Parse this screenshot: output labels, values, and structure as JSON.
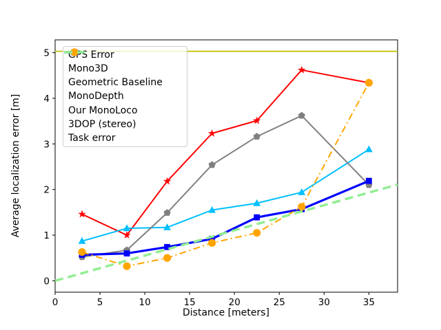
{
  "figure": {
    "background": "#ffffff",
    "border_color": "#000000"
  },
  "legend": {
    "position": "upper-left",
    "border_color": "#cccccc",
    "background": "rgba(255,255,255,0.8)"
  },
  "chart_data": {
    "type": "line",
    "title": "",
    "xlabel": "Distance [meters]",
    "ylabel": "Average localization error [m]",
    "xlim": [
      0,
      38.2
    ],
    "ylim": [
      -0.25,
      5.28
    ],
    "x_ticks": [
      0,
      5,
      10,
      15,
      20,
      25,
      30,
      35
    ],
    "y_ticks": [
      0,
      1,
      2,
      3,
      4,
      5
    ],
    "grid": false,
    "legend_position": "upper-left",
    "series": [
      {
        "name": "GPS Error",
        "slug": "gps-error",
        "color": "#bfbf00",
        "style": "solid",
        "marker": "none",
        "linewidth": 1.8,
        "x": [
          0,
          38.2
        ],
        "y": [
          5.03,
          5.03
        ]
      },
      {
        "name": "Mono3D",
        "slug": "mono3d",
        "color": "#ff0000",
        "style": "solid",
        "marker": "star",
        "linewidth": 2,
        "x": [
          3,
          8,
          12.5,
          17.5,
          22.5,
          27.5,
          35
        ],
        "y": [
          1.46,
          1.0,
          2.18,
          3.23,
          3.51,
          4.62,
          4.34
        ]
      },
      {
        "name": "Geometric Baseline",
        "slug": "geometric-baseline",
        "color": "#00bfff",
        "style": "solid",
        "marker": "triangle",
        "linewidth": 2,
        "x": [
          3,
          8,
          12.5,
          17.5,
          22.5,
          27.5,
          35
        ],
        "y": [
          0.87,
          1.15,
          1.17,
          1.55,
          1.7,
          1.94,
          2.88
        ]
      },
      {
        "name": "MonoDepth",
        "slug": "monodepth",
        "color": "#808080",
        "style": "solid",
        "marker": "pentagon",
        "linewidth": 2,
        "x": [
          3,
          8,
          12.5,
          17.5,
          22.5,
          27.5,
          35
        ],
        "y": [
          0.52,
          0.67,
          1.49,
          2.54,
          3.16,
          3.62,
          2.1
        ]
      },
      {
        "name": "Our MonoLoco",
        "slug": "our-monoloco",
        "color": "#0000ff",
        "style": "solid",
        "marker": "square",
        "linewidth": 3.2,
        "x": [
          3,
          8,
          12.5,
          17.5,
          22.5,
          27.5,
          35
        ],
        "y": [
          0.57,
          0.6,
          0.74,
          0.92,
          1.39,
          1.57,
          2.19
        ]
      },
      {
        "name": "3DOP (stereo)",
        "slug": "3dop-stereo",
        "color": "#ffa500",
        "style": "dashdot",
        "marker": "circle",
        "linewidth": 2,
        "x": [
          3,
          8,
          12.5,
          17.5,
          22.5,
          27.5,
          35
        ],
        "y": [
          0.63,
          0.32,
          0.5,
          0.83,
          1.05,
          1.62,
          4.34
        ]
      },
      {
        "name": "Task error",
        "slug": "task-error",
        "color": "#90ee90",
        "style": "dashed",
        "marker": "none",
        "linewidth": 3.4,
        "x": [
          0,
          38.2
        ],
        "y": [
          0.0,
          2.11
        ]
      }
    ]
  }
}
